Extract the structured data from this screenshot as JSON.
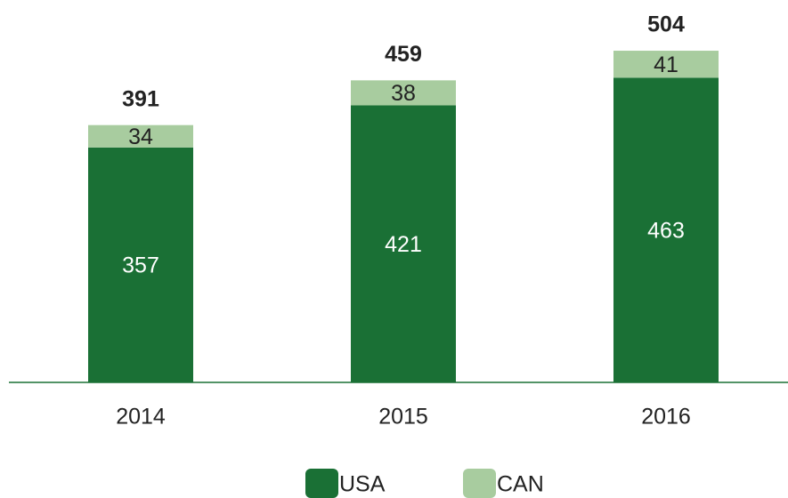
{
  "chart_data": {
    "type": "stacked_bar",
    "categories": [
      "2014",
      "2015",
      "2016"
    ],
    "series": [
      {
        "name": "USA",
        "color": "#1a7035",
        "values": [
          357,
          421,
          463
        ]
      },
      {
        "name": "CAN",
        "color": "#a8cc9f",
        "values": [
          34,
          38,
          41
        ]
      }
    ],
    "totals": [
      391,
      459,
      504
    ],
    "ylim": [
      0,
      550
    ],
    "legend": "bottom"
  }
}
